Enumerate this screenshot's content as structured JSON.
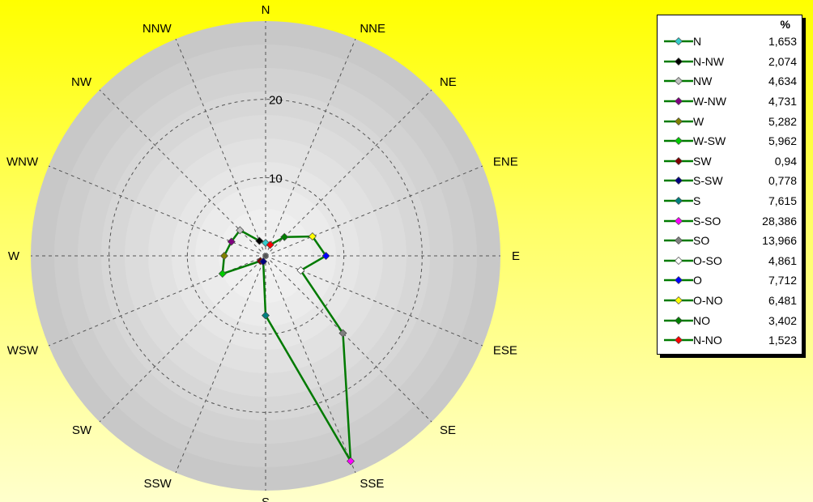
{
  "chart_data": {
    "type": "radar",
    "directions": [
      "N",
      "NNE",
      "NE",
      "ENE",
      "E",
      "ESE",
      "SE",
      "SSE",
      "S",
      "SSW",
      "SW",
      "WSW",
      "W",
      "WNW",
      "NW",
      "NNW"
    ],
    "radial_ticks": [
      "10",
      "20"
    ],
    "rmax": 30,
    "line_color": "#007a00",
    "points": [
      {
        "name": "N",
        "angle": 0,
        "value": 1.653,
        "label": "1,653",
        "color": "#33cccc"
      },
      {
        "name": "N-NW",
        "angle": 337.5,
        "value": 2.074,
        "label": "2,074",
        "color": "#000000"
      },
      {
        "name": "NW",
        "angle": 315,
        "value": 4.634,
        "label": "4,634",
        "color": "#c0c0c0"
      },
      {
        "name": "W-NW",
        "angle": 292.5,
        "value": 4.731,
        "label": "4,731",
        "color": "#800080"
      },
      {
        "name": "W",
        "angle": 270,
        "value": 5.282,
        "label": "5,282",
        "color": "#808000"
      },
      {
        "name": "W-SW",
        "angle": 247.5,
        "value": 5.962,
        "label": "5,962",
        "color": "#00cc00"
      },
      {
        "name": "SW",
        "angle": 225,
        "value": 0.94,
        "label": "0,94",
        "color": "#800000"
      },
      {
        "name": "S-SW",
        "angle": 202.5,
        "value": 0.778,
        "label": "0,778",
        "color": "#000080"
      },
      {
        "name": "S",
        "angle": 180,
        "value": 7.615,
        "label": "7,615",
        "color": "#008080"
      },
      {
        "name": "S-SO",
        "angle": 157.5,
        "value": 28.386,
        "label": "28,386",
        "color": "#ff00ff"
      },
      {
        "name": "SO",
        "angle": 135,
        "value": 13.966,
        "label": "13,966",
        "color": "#808080"
      },
      {
        "name": "O-SO",
        "angle": 112.5,
        "value": 4.861,
        "label": "4,861",
        "color": "#ffffff"
      },
      {
        "name": "O",
        "angle": 90,
        "value": 7.712,
        "label": "7,712",
        "color": "#0000ff"
      },
      {
        "name": "O-NO",
        "angle": 67.5,
        "value": 6.481,
        "label": "6,481",
        "color": "#ffff00"
      },
      {
        "name": "NO",
        "angle": 45,
        "value": 3.402,
        "label": "3,402",
        "color": "#008000"
      },
      {
        "name": "N-NO",
        "angle": 22.5,
        "value": 1.523,
        "label": "1,523",
        "color": "#ff0000"
      }
    ]
  },
  "legend": {
    "header": "%"
  }
}
